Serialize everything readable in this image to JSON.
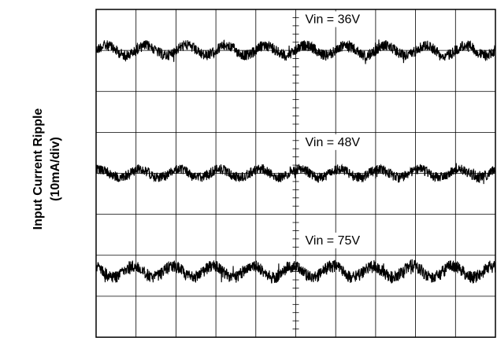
{
  "chart_data": {
    "type": "line",
    "title": "",
    "ylabel": "Input Current Ripple",
    "ylabel_unit": "(10mA/div)",
    "grid": true,
    "grid_divisions": {
      "x": 10,
      "y": 8
    },
    "series": [
      {
        "name": "Vin = 36V",
        "center_div": 1.0,
        "ripple_cycles": 10,
        "ripple_amplitude_div": 0.12,
        "noise_div": 0.13
      },
      {
        "name": "Vin = 48V",
        "center_div": 4.0,
        "ripple_cycles": 10,
        "ripple_amplitude_div": 0.1,
        "noise_div": 0.12
      },
      {
        "name": "Vin = 75V",
        "center_div": 6.4,
        "ripple_cycles": 10,
        "ripple_amplitude_div": 0.14,
        "noise_div": 0.15
      }
    ]
  }
}
